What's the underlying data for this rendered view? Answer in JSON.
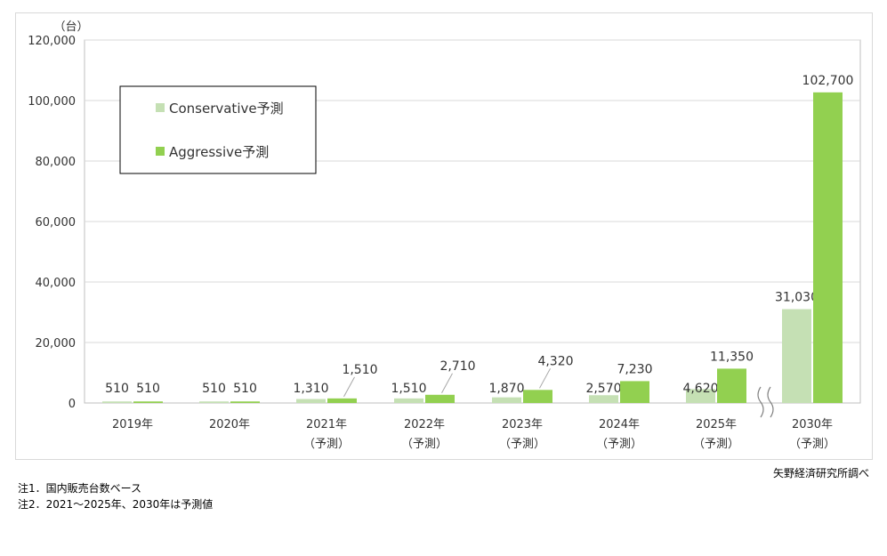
{
  "chart_data": {
    "type": "bar",
    "y_unit_label": "（台）",
    "categories": [
      "2019年",
      "2020年",
      "2021年",
      "2022年",
      "2023年",
      "2024年",
      "2025年",
      "2030年"
    ],
    "category_sublabels": [
      "",
      "",
      "（予測）",
      "（予測）",
      "（予測）",
      "（予測）",
      "（予測）",
      "（予測）"
    ],
    "series": [
      {
        "name": "Conservative予測",
        "values": [
          510,
          510,
          1310,
          1510,
          1870,
          2570,
          4620,
          31030
        ],
        "labels": [
          "510",
          "510",
          "1,310",
          "1,510",
          "1,870",
          "2,570",
          "4,620",
          "31,030"
        ]
      },
      {
        "name": "Aggressive予測",
        "values": [
          510,
          510,
          1510,
          2710,
          4320,
          7230,
          11350,
          102700
        ],
        "labels": [
          "510",
          "510",
          "1,510",
          "2,710",
          "4,320",
          "7,230",
          "11,350",
          "102,700"
        ]
      }
    ],
    "ylim": [
      0,
      120000
    ],
    "yticks": [
      0,
      20000,
      40000,
      60000,
      80000,
      100000,
      120000
    ],
    "ytick_labels": [
      "0",
      "20,000",
      "40,000",
      "60,000",
      "80,000",
      "100,000",
      "120,000"
    ],
    "grid": true,
    "legend_position": "top-left",
    "axis_break_after": "2025年"
  },
  "colors": {
    "conservative": "#c5e0b4",
    "aggressive": "#92d050",
    "grid": "#d9d9d9"
  },
  "source": "矢野経済研究所調べ",
  "notes": [
    "注1．国内販売台数ベース",
    "注2．2021～2025年、2030年は予測値"
  ]
}
